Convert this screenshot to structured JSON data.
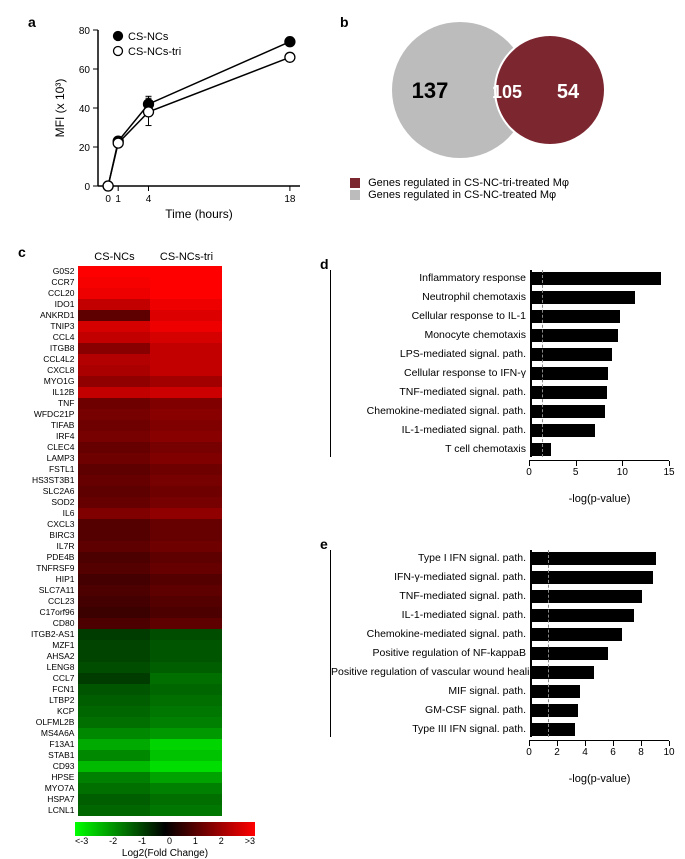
{
  "panel_a": {
    "label": "a",
    "type": "line",
    "x_label": "Time (hours)",
    "y_label": "MFI (x 10³)",
    "xlim": [
      -1,
      19
    ],
    "ylim": [
      0,
      80
    ],
    "xticks": [
      0,
      1,
      4,
      18
    ],
    "yticks": [
      0,
      20,
      40,
      60,
      80
    ],
    "axis_fontsize": 12,
    "tick_fontsize": 10,
    "series": [
      {
        "name": "CS-NCs",
        "marker": "filled-circle",
        "color": "#000000",
        "x": [
          0,
          1,
          4,
          18
        ],
        "y": [
          0,
          23,
          42,
          74
        ],
        "y_err": [
          0,
          1,
          4,
          1
        ]
      },
      {
        "name": "CS-NCs-tri",
        "marker": "open-circle",
        "color": "#000000",
        "x": [
          0,
          1,
          4,
          18
        ],
        "y": [
          0,
          22,
          38,
          66
        ],
        "y_err": [
          0,
          1,
          7,
          1
        ]
      }
    ],
    "line_width": 1.5,
    "marker_size": 5,
    "background_color": "#ffffff"
  },
  "panel_b": {
    "label": "b",
    "type": "venn2",
    "left": {
      "count": 137,
      "color": "#bcbcbc",
      "label": "Genes regulated in CS-NC-treated Mφ"
    },
    "right": {
      "count": 54,
      "color": "#7c2630",
      "label": "Genes regulated in CS-NC-tri-treated Mφ"
    },
    "overlap": {
      "count": 105,
      "text_color": "#ffffff"
    },
    "count_fontsize": 18,
    "legend_fontsize": 10
  },
  "panel_c": {
    "label": "c",
    "type": "heatmap",
    "columns": [
      "CS-NCs",
      "CS-NCs-tri"
    ],
    "colormap": {
      "min_color": "#00ff00",
      "mid_color": "#000000",
      "max_color": "#ff0000",
      "min": -3,
      "max": 3
    },
    "colorbar_title": "Log2(Fold Change)",
    "colorbar_ticks": [
      "<-3",
      "-2",
      "-1",
      "0",
      "1",
      "2",
      ">3"
    ],
    "gene_fontsize": 8.5,
    "rows": [
      {
        "gene": "G0S2",
        "v": [
          3.0,
          3.0
        ]
      },
      {
        "gene": "CCR7",
        "v": [
          2.9,
          3.0
        ]
      },
      {
        "gene": "CCL20",
        "v": [
          2.8,
          3.0
        ]
      },
      {
        "gene": "IDO1",
        "v": [
          2.3,
          2.8
        ]
      },
      {
        "gene": "ANKRD1",
        "v": [
          1.1,
          2.6
        ]
      },
      {
        "gene": "TNIP3",
        "v": [
          2.5,
          2.8
        ]
      },
      {
        "gene": "CCL4",
        "v": [
          2.3,
          2.5
        ]
      },
      {
        "gene": "ITGB8",
        "v": [
          1.6,
          2.3
        ]
      },
      {
        "gene": "CCL4L2",
        "v": [
          2.1,
          2.3
        ]
      },
      {
        "gene": "CXCL8",
        "v": [
          2.0,
          2.3
        ]
      },
      {
        "gene": "MYO1G",
        "v": [
          1.7,
          1.9
        ]
      },
      {
        "gene": "IL12B",
        "v": [
          2.3,
          2.4
        ]
      },
      {
        "gene": "TNF",
        "v": [
          1.3,
          1.5
        ]
      },
      {
        "gene": "WFDC21P",
        "v": [
          1.4,
          1.6
        ]
      },
      {
        "gene": "TIFAB",
        "v": [
          1.3,
          1.5
        ]
      },
      {
        "gene": "IRF4",
        "v": [
          1.4,
          1.6
        ]
      },
      {
        "gene": "CLEC4",
        "v": [
          1.2,
          1.4
        ]
      },
      {
        "gene": "LAMP3",
        "v": [
          1.3,
          1.5
        ]
      },
      {
        "gene": "FSTL1",
        "v": [
          1.1,
          1.3
        ]
      },
      {
        "gene": "HS3ST3B1",
        "v": [
          1.2,
          1.4
        ]
      },
      {
        "gene": "SLC2A6",
        "v": [
          1.1,
          1.3
        ]
      },
      {
        "gene": "SOD2",
        "v": [
          1.2,
          1.4
        ]
      },
      {
        "gene": "IL6",
        "v": [
          1.5,
          1.7
        ]
      },
      {
        "gene": "CXCL3",
        "v": [
          1.0,
          1.2
        ]
      },
      {
        "gene": "BIRC3",
        "v": [
          1.0,
          1.2
        ]
      },
      {
        "gene": "IL7R",
        "v": [
          1.1,
          1.3
        ]
      },
      {
        "gene": "PDE4B",
        "v": [
          0.9,
          1.1
        ]
      },
      {
        "gene": "TNFRSF9",
        "v": [
          1.0,
          1.2
        ]
      },
      {
        "gene": "HIP1",
        "v": [
          0.8,
          1.0
        ]
      },
      {
        "gene": "SLC7A11",
        "v": [
          0.9,
          1.1
        ]
      },
      {
        "gene": "CCL23",
        "v": [
          0.8,
          1.0
        ]
      },
      {
        "gene": "C17orf96",
        "v": [
          0.7,
          0.9
        ]
      },
      {
        "gene": "CD80",
        "v": [
          0.9,
          1.1
        ]
      },
      {
        "gene": "ITGB2-AS1",
        "v": [
          -0.7,
          -0.9
        ]
      },
      {
        "gene": "MZF1",
        "v": [
          -0.8,
          -1.0
        ]
      },
      {
        "gene": "AHSA2",
        "v": [
          -0.8,
          -1.0
        ]
      },
      {
        "gene": "LENG8",
        "v": [
          -0.9,
          -1.1
        ]
      },
      {
        "gene": "CCL7",
        "v": [
          -0.7,
          -1.3
        ]
      },
      {
        "gene": "FCN1",
        "v": [
          -1.0,
          -1.2
        ]
      },
      {
        "gene": "LTBP2",
        "v": [
          -1.1,
          -1.3
        ]
      },
      {
        "gene": "KCP",
        "v": [
          -1.2,
          -1.4
        ]
      },
      {
        "gene": "OLFML2B",
        "v": [
          -1.3,
          -1.5
        ]
      },
      {
        "gene": "MS4A6A",
        "v": [
          -1.6,
          -1.8
        ]
      },
      {
        "gene": "F13A1",
        "v": [
          -2.0,
          -2.5
        ]
      },
      {
        "gene": "STAB1",
        "v": [
          -1.6,
          -2.3
        ]
      },
      {
        "gene": "CD93",
        "v": [
          -2.2,
          -2.6
        ]
      },
      {
        "gene": "HPSE",
        "v": [
          -1.5,
          -1.9
        ]
      },
      {
        "gene": "MYO7A",
        "v": [
          -1.3,
          -1.5
        ]
      },
      {
        "gene": "HSPA7",
        "v": [
          -1.1,
          -1.3
        ]
      },
      {
        "gene": "LCNL1",
        "v": [
          -1.2,
          -1.4
        ]
      }
    ]
  },
  "panel_d": {
    "label": "d",
    "type": "bar-h",
    "x_label": "-log(p-value)",
    "xlim": [
      0,
      15
    ],
    "xtick_step": 5,
    "ref_line": 1.3,
    "bar_color": "#000000",
    "ref_color": "#888888",
    "label_fontsize": 10.5,
    "items": [
      {
        "label": "Inflammatory response",
        "v": 14.0
      },
      {
        "label": "Neutrophil chemotaxis",
        "v": 11.2
      },
      {
        "label": "Cellular response to IL-1",
        "v": 9.6
      },
      {
        "label": "Monocyte chemotaxis",
        "v": 9.4
      },
      {
        "label": "LPS-mediated signal. path.",
        "v": 8.8
      },
      {
        "label": "Cellular response to IFN-γ",
        "v": 8.4
      },
      {
        "label": "TNF-mediated signal. path.",
        "v": 8.2
      },
      {
        "label": "Chemokine-mediated signal. path.",
        "v": 8.0
      },
      {
        "label": "IL-1-mediated signal. path.",
        "v": 7.0
      },
      {
        "label": "T cell chemotaxis",
        "v": 2.3
      }
    ]
  },
  "panel_e": {
    "label": "e",
    "type": "bar-h",
    "x_label": "-log(p-value)",
    "xlim": [
      0,
      10
    ],
    "xtick_step": 2,
    "ref_line": 1.3,
    "bar_color": "#000000",
    "ref_color": "#888888",
    "label_fontsize": 10.5,
    "items": [
      {
        "label": "Type I IFN signal. path.",
        "v": 9.0
      },
      {
        "label": "IFN-γ-mediated signal. path.",
        "v": 8.8
      },
      {
        "label": "TNF-mediated signal. path.",
        "v": 8.0
      },
      {
        "label": "IL-1-mediated signal. path.",
        "v": 7.4
      },
      {
        "label": "Chemokine-mediated signal. path.",
        "v": 6.6
      },
      {
        "label": "Positive regulation of NF-kappaB",
        "v": 5.6
      },
      {
        "label": "Positive regulation of vascular wound healing",
        "v": 4.6
      },
      {
        "label": "MIF signal. path.",
        "v": 3.6
      },
      {
        "label": "GM-CSF signal. path.",
        "v": 3.4
      },
      {
        "label": "Type III IFN signal. path.",
        "v": 3.2
      }
    ]
  }
}
